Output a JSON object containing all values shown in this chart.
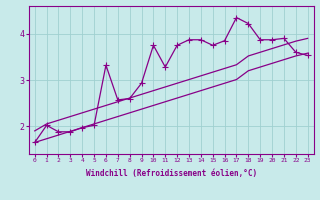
{
  "xlabel": "Windchill (Refroidissement éolien,°C)",
  "x": [
    0,
    1,
    2,
    3,
    4,
    5,
    6,
    7,
    8,
    9,
    10,
    11,
    12,
    13,
    14,
    15,
    16,
    17,
    18,
    19,
    20,
    21,
    22,
    23
  ],
  "y_jagged": [
    1.65,
    2.02,
    1.88,
    1.88,
    1.97,
    2.02,
    3.32,
    2.57,
    2.6,
    2.93,
    3.75,
    3.28,
    3.75,
    3.87,
    3.87,
    3.75,
    3.85,
    4.35,
    4.22,
    3.87,
    3.87,
    3.9,
    3.6,
    3.53
  ],
  "y_upper_line": [
    1.9,
    2.05,
    2.13,
    2.21,
    2.29,
    2.37,
    2.45,
    2.53,
    2.61,
    2.69,
    2.77,
    2.85,
    2.93,
    3.01,
    3.09,
    3.17,
    3.25,
    3.33,
    3.52,
    3.6,
    3.68,
    3.76,
    3.84,
    3.9
  ],
  "y_lower_line": [
    1.65,
    1.73,
    1.81,
    1.89,
    1.97,
    2.05,
    2.13,
    2.21,
    2.29,
    2.37,
    2.45,
    2.53,
    2.61,
    2.69,
    2.77,
    2.85,
    2.93,
    3.01,
    3.2,
    3.28,
    3.36,
    3.44,
    3.52,
    3.58
  ],
  "line_color": "#880088",
  "bg_color": "#c8eaea",
  "grid_color": "#a0d0d0",
  "ylim": [
    1.4,
    4.6
  ],
  "yticks": [
    2,
    3,
    4
  ],
  "xlim": [
    0,
    23
  ]
}
